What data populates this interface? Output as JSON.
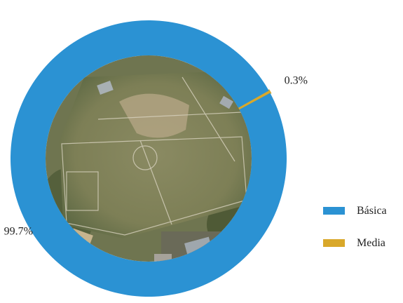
{
  "chart_data": {
    "type": "pie",
    "style": "donut",
    "center_image": "aerial-photo-sports-field",
    "categories": [
      "Básica",
      "Media"
    ],
    "values": [
      99.7,
      0.3
    ],
    "value_labels": [
      "99.7%",
      "0.3%"
    ],
    "colors": [
      "#2b92d3",
      "#d9a82a"
    ],
    "legend_position": "right"
  },
  "legend": {
    "items": [
      {
        "label": "Básica",
        "color": "#2b92d3"
      },
      {
        "label": "Media",
        "color": "#d9a82a"
      }
    ]
  }
}
